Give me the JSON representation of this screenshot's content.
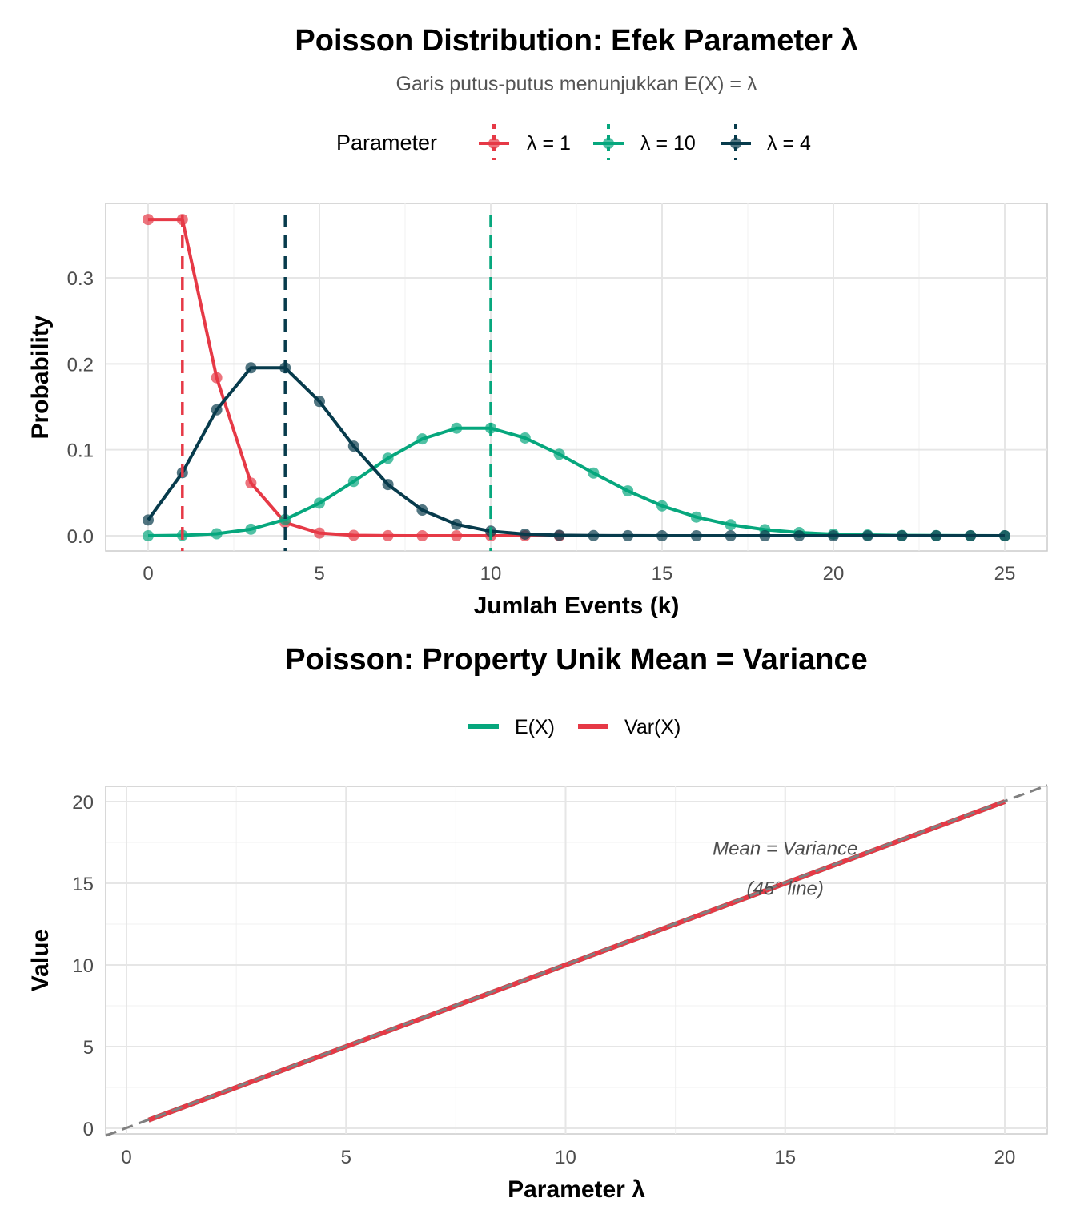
{
  "chart_data": [
    {
      "type": "line",
      "title": "Poisson Distribution: Efek Parameter λ",
      "subtitle": "Garis putus-putus menunjukkan E(X) = λ",
      "xlabel": "Jumlah Events (k)",
      "ylabel": "Probability",
      "xlim": [
        -1.2,
        26.2
      ],
      "ylim": [
        -0.018,
        0.386
      ],
      "xticks": [
        0,
        5,
        10,
        15,
        20,
        25
      ],
      "yticks": [
        0.0,
        0.1,
        0.2,
        0.3
      ],
      "ytick_labels": [
        "0.0",
        "0.1",
        "0.2",
        "0.3"
      ],
      "legend_title": "Parameter",
      "legend_position": "top",
      "series": [
        {
          "name": "λ = 1",
          "lambda": 1,
          "color": "#E63946",
          "x": [
            0,
            1,
            2,
            3,
            4,
            5,
            6,
            7,
            8,
            9,
            10,
            11,
            12
          ],
          "values": [
            0.3679,
            0.3679,
            0.1839,
            0.0613,
            0.0153,
            0.0031,
            0.0005,
            0.0001,
            0,
            0,
            0,
            0,
            0
          ]
        },
        {
          "name": "λ = 10",
          "lambda": 10,
          "color": "#06A77D",
          "x": [
            0,
            1,
            2,
            3,
            4,
            5,
            6,
            7,
            8,
            9,
            10,
            11,
            12,
            13,
            14,
            15,
            16,
            17,
            18,
            19,
            20,
            21,
            22,
            23,
            24,
            25
          ],
          "values": [
            0.0,
            0.0005,
            0.0023,
            0.0076,
            0.0189,
            0.0378,
            0.0631,
            0.0901,
            0.1126,
            0.1251,
            0.1251,
            0.1137,
            0.0948,
            0.0729,
            0.0521,
            0.0347,
            0.0217,
            0.0128,
            0.0071,
            0.0037,
            0.0019,
            0.0009,
            0.0004,
            0.0002,
            0.0001,
            0.0
          ]
        },
        {
          "name": "λ = 4",
          "lambda": 4,
          "color": "#073B4C",
          "x": [
            0,
            1,
            2,
            3,
            4,
            5,
            6,
            7,
            8,
            9,
            10,
            11,
            12,
            13,
            14,
            15,
            16,
            17,
            18,
            19,
            20,
            21,
            22,
            23,
            24,
            25
          ],
          "values": [
            0.0183,
            0.0733,
            0.1465,
            0.1954,
            0.1954,
            0.1563,
            0.1042,
            0.0595,
            0.0298,
            0.0132,
            0.0053,
            0.0019,
            0.0006,
            0.0002,
            0.0001,
            0,
            0,
            0,
            0,
            0,
            0,
            0,
            0,
            0,
            0,
            0
          ]
        }
      ]
    },
    {
      "type": "line",
      "title": "Poisson: Property Unik Mean = Variance",
      "xlabel": "Parameter λ",
      "ylabel": "Value",
      "xlim": [
        -0.45,
        21
      ],
      "ylim": [
        -0.3,
        21
      ],
      "xticks": [
        0,
        5,
        10,
        15,
        20
      ],
      "yticks": [
        0,
        5,
        10,
        15,
        20
      ],
      "legend_position": "top",
      "series": [
        {
          "name": "E(X)",
          "color": "#06A77D",
          "x": [
            0.5,
            20
          ],
          "values": [
            0.5,
            20
          ]
        },
        {
          "name": "Var(X)",
          "color": "#E63946",
          "x": [
            0.5,
            20
          ],
          "values": [
            0.5,
            20
          ]
        }
      ],
      "reference_line": {
        "slope": 1,
        "intercept": 0,
        "color": "#808080",
        "style": "dashed"
      },
      "annotation": {
        "line1": "Mean = Variance",
        "line2": "(45° line)",
        "x": 15,
        "y": 16.5
      }
    }
  ]
}
